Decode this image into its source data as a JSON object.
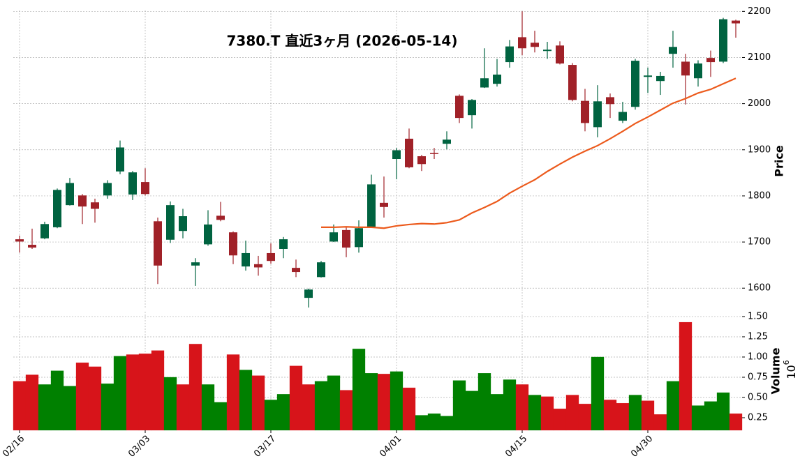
{
  "chart_data": {
    "type": "candlestick",
    "title": "7380.T  直近3ヶ月  (2026-05-14)",
    "categories": [
      "02/16",
      null,
      null,
      null,
      null,
      null,
      null,
      null,
      null,
      null,
      "03/03",
      null,
      null,
      null,
      null,
      null,
      null,
      null,
      null,
      null,
      "03/17",
      null,
      null,
      null,
      null,
      null,
      null,
      null,
      null,
      null,
      "04/01",
      null,
      null,
      null,
      null,
      null,
      null,
      null,
      null,
      null,
      "04/15",
      null,
      null,
      null,
      null,
      null,
      null,
      null,
      null,
      null,
      "04/30",
      null,
      null,
      null,
      null,
      null,
      null,
      null
    ],
    "open": [
      1706,
      1694,
      1708,
      1732,
      1780,
      1801,
      1786,
      1801,
      1853,
      1803,
      1830,
      1745,
      1705,
      1724,
      1649,
      1695,
      1757,
      1721,
      1647,
      1652,
      1676,
      1685,
      1644,
      1579,
      1624,
      1701,
      1726,
      1689,
      1733,
      1785,
      1880,
      1924,
      1886,
      1893,
      1913,
      2017,
      1975,
      2035,
      2043,
      2090,
      2144,
      2132,
      2114,
      2126,
      2084,
      2006,
      1949,
      2014,
      1963,
      1993,
      2058,
      2049,
      2108,
      2091,
      2055,
      2099,
      2091,
      2180
    ],
    "high": [
      1714,
      1729,
      1744,
      1816,
      1839,
      1804,
      1794,
      1834,
      1920,
      1854,
      1860,
      1753,
      1788,
      1772,
      1665,
      1769,
      1787,
      1723,
      1703,
      1670,
      1697,
      1711,
      1662,
      1599,
      1659,
      1738,
      1732,
      1747,
      1846,
      1842,
      1904,
      1946,
      1889,
      1904,
      1940,
      2020,
      2010,
      2120,
      2097,
      2138,
      2200,
      2158,
      2134,
      2135,
      2088,
      2032,
      2040,
      2022,
      2004,
      2097,
      2078,
      2069,
      2158,
      2108,
      2094,
      2115,
      2186,
      2182
    ],
    "low": [
      1677,
      1685,
      1706,
      1730,
      1779,
      1739,
      1742,
      1794,
      1847,
      1791,
      1801,
      1609,
      1698,
      1708,
      1605,
      1692,
      1745,
      1652,
      1638,
      1627,
      1653,
      1665,
      1624,
      1558,
      1623,
      1700,
      1667,
      1677,
      1732,
      1753,
      1836,
      1860,
      1854,
      1880,
      1901,
      1958,
      1946,
      2034,
      2037,
      2078,
      2105,
      2111,
      2097,
      2085,
      2005,
      1940,
      1927,
      1969,
      1958,
      1987,
      2023,
      2019,
      2078,
      1998,
      2037,
      2058,
      2088,
      2143
    ],
    "close": [
      1701,
      1688,
      1739,
      1813,
      1828,
      1777,
      1772,
      1828,
      1905,
      1851,
      1804,
      1649,
      1780,
      1756,
      1656,
      1738,
      1748,
      1671,
      1676,
      1645,
      1659,
      1706,
      1635,
      1597,
      1656,
      1721,
      1688,
      1730,
      1825,
      1776,
      1899,
      1862,
      1869,
      1892,
      1922,
      1969,
      2008,
      2055,
      2063,
      2124,
      2120,
      2123,
      2117,
      2087,
      2008,
      1958,
      2005,
      1999,
      1982,
      2093,
      2061,
      2060,
      2123,
      2061,
      2087,
      2090,
      2183,
      2174
    ],
    "up_color": "#006340",
    "down_color": "#a02128",
    "moving_average": {
      "color": "#ec5a1c",
      "values": [
        null,
        null,
        null,
        null,
        null,
        null,
        null,
        null,
        null,
        null,
        null,
        null,
        null,
        null,
        null,
        null,
        null,
        null,
        null,
        null,
        null,
        null,
        null,
        null,
        1732,
        1732,
        1733,
        1732,
        1732,
        1730,
        1735,
        1738,
        1740,
        1739,
        1742,
        1748,
        1763,
        1775,
        1788,
        1806,
        1821,
        1835,
        1853,
        1869,
        1884,
        1897,
        1909,
        1924,
        1940,
        1957,
        1971,
        1986,
        2001,
        2011,
        2023,
        2031,
        2043,
        2055
      ]
    },
    "ylabel": "Price",
    "ylim": [
      1555,
      2202
    ],
    "yticks": [
      1600,
      1700,
      1800,
      1900,
      2000,
      2100,
      2200
    ],
    "grid": true,
    "volume": {
      "ylabel": "Volume",
      "multiplier_base": "10",
      "multiplier_exponent": "6",
      "up_color": "#008000",
      "down_color": "#d7141a",
      "values": [
        0.7,
        0.78,
        0.66,
        0.83,
        0.64,
        0.93,
        0.88,
        0.67,
        1.01,
        1.03,
        1.04,
        1.08,
        0.75,
        0.66,
        1.16,
        0.66,
        0.44,
        1.03,
        0.84,
        0.77,
        0.47,
        0.54,
        0.89,
        0.66,
        0.7,
        0.77,
        0.59,
        1.1,
        0.8,
        0.79,
        0.82,
        0.62,
        0.28,
        0.3,
        0.27,
        0.71,
        0.58,
        0.8,
        0.54,
        0.72,
        0.66,
        0.53,
        0.51,
        0.36,
        0.53,
        0.42,
        1.0,
        0.47,
        0.43,
        0.53,
        0.46,
        0.29,
        0.7,
        1.43,
        0.4,
        0.45,
        0.56,
        0.3
      ],
      "ylim": [
        0.095,
        1.56
      ],
      "yticks": [
        {
          "value": 0.25,
          "label": "0.25"
        },
        {
          "value": 0.5,
          "label": "0.50"
        },
        {
          "value": 0.75,
          "label": "0.75"
        },
        {
          "value": 1.0,
          "label": "1.00"
        },
        {
          "value": 1.25,
          "label": "1.25"
        },
        {
          "value": 1.5,
          "label": "1.50"
        }
      ]
    }
  }
}
